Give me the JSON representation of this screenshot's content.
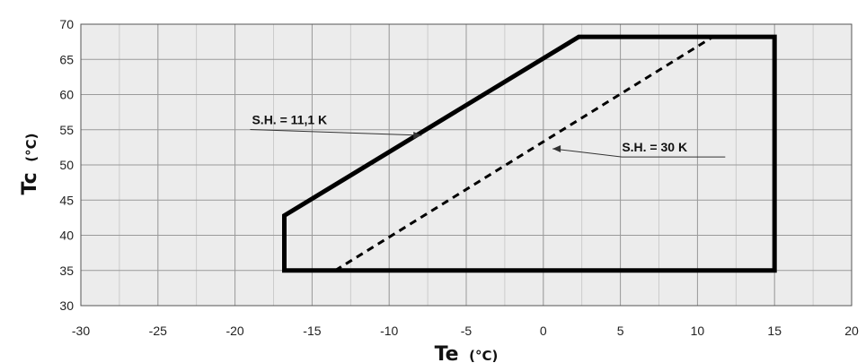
{
  "chart_data": {
    "type": "line",
    "xlim": [
      -30,
      20
    ],
    "ylim": [
      30,
      70
    ],
    "x_ticks": [
      -30,
      -25,
      -20,
      -15,
      -10,
      -5,
      0,
      5,
      10,
      15,
      20
    ],
    "y_ticks": [
      30,
      35,
      40,
      45,
      50,
      55,
      60,
      65,
      70
    ],
    "x_minor_step": 2.5,
    "grid": true,
    "xlabel": {
      "main": "Te",
      "unit": "(°C)"
    },
    "ylabel": {
      "main": "Tc",
      "unit": "(°C)"
    },
    "series": [
      {
        "label": "S.H. = 11,1 K",
        "style": "solid",
        "closed": true,
        "points": [
          [
            -16.8,
            35
          ],
          [
            -16.8,
            42.8
          ],
          [
            2.3,
            68.2
          ],
          [
            15,
            68.2
          ],
          [
            15,
            35
          ]
        ]
      },
      {
        "label": "S.H. = 30 K",
        "style": "dashed",
        "closed": false,
        "points": [
          [
            -13.5,
            35
          ],
          [
            11,
            68.2
          ]
        ]
      }
    ],
    "annotations": [
      {
        "text": "S.H. = 11,1 K",
        "x": -18.9,
        "y": 55.8,
        "arrow_to": [
          -7.9,
          54.2
        ]
      },
      {
        "text": "S.H. = 30 K",
        "x": 5.1,
        "y": 51.9,
        "arrow_to": [
          0.6,
          52.3
        ]
      }
    ]
  }
}
